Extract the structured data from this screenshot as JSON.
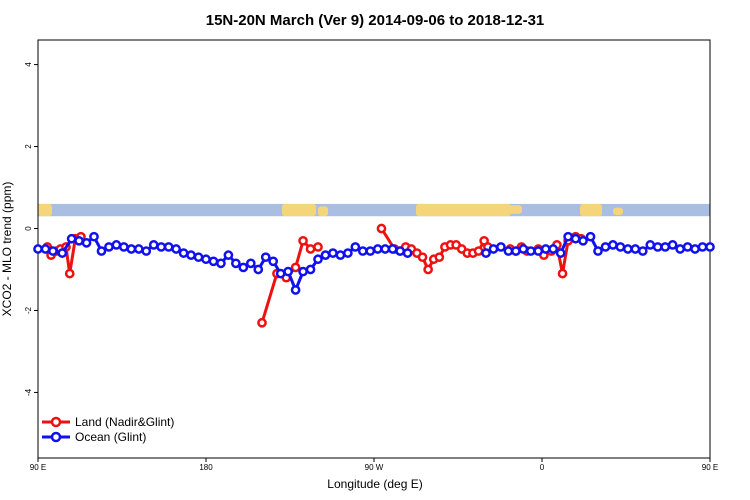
{
  "chart_data": {
    "type": "line",
    "title": "15N-20N March (Ver 9)   2014-09-06 to 2018-12-31",
    "xlabel": "Longitude (deg E)",
    "ylabel": "XCO2 - MLO trend (ppm)",
    "xlim": [
      90,
      450
    ],
    "ylim": [
      -5.6,
      4.6
    ],
    "x_ticks": [
      {
        "value": 90,
        "label": "90 E"
      },
      {
        "value": 180,
        "label": "180"
      },
      {
        "value": 270,
        "label": "90 W"
      },
      {
        "value": 360,
        "label": "0"
      },
      {
        "value": 450,
        "label": "90 E"
      },
      {
        "value": 540,
        "label": "180"
      }
    ],
    "y_ticks": [
      {
        "value": -4,
        "label": "-4"
      },
      {
        "value": -2,
        "label": "-2"
      },
      {
        "value": 0,
        "label": "0"
      },
      {
        "value": 2,
        "label": "2"
      },
      {
        "value": 4,
        "label": "4"
      }
    ],
    "map_strip": {
      "ymin": 0.3,
      "ymax": 0.6,
      "ocean_color": "#a9bee0",
      "land_color": "#f5d57a"
    },
    "grid": false,
    "legend_position": "bottom-left",
    "series": [
      {
        "name": "Land (Nadir&Glint)",
        "color": "#ee1111",
        "points": [
          [
            95,
            -0.45
          ],
          [
            97,
            -0.65
          ],
          [
            100,
            -0.55
          ],
          [
            102,
            -0.5
          ],
          [
            105,
            -0.45
          ],
          [
            107,
            -1.1
          ],
          [
            110,
            -0.25
          ],
          [
            113,
            -0.2
          ],
          [
            210,
            -2.3
          ],
          [
            218,
            -1.1
          ],
          [
            223,
            -1.2
          ],
          [
            228,
            -0.95
          ],
          [
            232,
            -0.3
          ],
          [
            236,
            -0.5
          ],
          [
            240,
            -0.45
          ],
          [
            274,
            0.0
          ],
          [
            281,
            -0.5
          ],
          [
            284,
            -0.55
          ],
          [
            287,
            -0.45
          ],
          [
            290,
            -0.5
          ],
          [
            293,
            -0.6
          ],
          [
            296,
            -0.7
          ],
          [
            299,
            -1.0
          ],
          [
            302,
            -0.75
          ],
          [
            305,
            -0.7
          ],
          [
            308,
            -0.45
          ],
          [
            311,
            -0.4
          ],
          [
            314,
            -0.4
          ],
          [
            317,
            -0.5
          ],
          [
            320,
            -0.6
          ],
          [
            323,
            -0.6
          ],
          [
            326,
            -0.55
          ],
          [
            329,
            -0.3
          ],
          [
            331,
            -0.45
          ],
          [
            343,
            -0.5
          ],
          [
            346,
            -0.55
          ],
          [
            349,
            -0.45
          ],
          [
            352,
            -0.55
          ],
          [
            358,
            -0.5
          ],
          [
            361,
            -0.65
          ],
          [
            365,
            -0.55
          ],
          [
            368,
            -0.4
          ],
          [
            371,
            -1.1
          ],
          [
            374,
            -0.3
          ],
          [
            378,
            -0.2
          ],
          [
            381,
            -0.25
          ]
        ]
      },
      {
        "name": "Ocean (Glint)",
        "color": "#1111ee",
        "points": [
          [
            90,
            -0.5
          ],
          [
            94,
            -0.5
          ],
          [
            98,
            -0.55
          ],
          [
            103,
            -0.6
          ],
          [
            108,
            -0.25
          ],
          [
            112,
            -0.3
          ],
          [
            116,
            -0.35
          ],
          [
            120,
            -0.2
          ],
          [
            124,
            -0.55
          ],
          [
            128,
            -0.45
          ],
          [
            132,
            -0.4
          ],
          [
            136,
            -0.45
          ],
          [
            140,
            -0.5
          ],
          [
            144,
            -0.5
          ],
          [
            148,
            -0.55
          ],
          [
            152,
            -0.4
          ],
          [
            156,
            -0.45
          ],
          [
            160,
            -0.45
          ],
          [
            164,
            -0.5
          ],
          [
            168,
            -0.6
          ],
          [
            172,
            -0.65
          ],
          [
            176,
            -0.7
          ],
          [
            180,
            -0.75
          ],
          [
            184,
            -0.8
          ],
          [
            188,
            -0.85
          ],
          [
            192,
            -0.65
          ],
          [
            196,
            -0.85
          ],
          [
            200,
            -0.95
          ],
          [
            204,
            -0.85
          ],
          [
            208,
            -1.0
          ],
          [
            212,
            -0.7
          ],
          [
            216,
            -0.8
          ],
          [
            220,
            -1.1
          ],
          [
            224,
            -1.05
          ],
          [
            228,
            -1.5
          ],
          [
            232,
            -1.05
          ],
          [
            236,
            -1.0
          ],
          [
            240,
            -0.75
          ],
          [
            244,
            -0.65
          ],
          [
            248,
            -0.6
          ],
          [
            252,
            -0.65
          ],
          [
            256,
            -0.6
          ],
          [
            260,
            -0.45
          ],
          [
            264,
            -0.55
          ],
          [
            268,
            -0.55
          ],
          [
            272,
            -0.5
          ],
          [
            276,
            -0.5
          ],
          [
            280,
            -0.5
          ],
          [
            284,
            -0.55
          ],
          [
            288,
            -0.6
          ],
          [
            330,
            -0.6
          ],
          [
            334,
            -0.5
          ],
          [
            338,
            -0.45
          ],
          [
            342,
            -0.55
          ],
          [
            346,
            -0.55
          ],
          [
            350,
            -0.5
          ],
          [
            354,
            -0.55
          ],
          [
            358,
            -0.55
          ],
          [
            362,
            -0.5
          ],
          [
            366,
            -0.5
          ],
          [
            370,
            -0.6
          ],
          [
            374,
            -0.2
          ],
          [
            378,
            -0.25
          ],
          [
            382,
            -0.3
          ],
          [
            386,
            -0.2
          ],
          [
            390,
            -0.55
          ],
          [
            394,
            -0.45
          ],
          [
            398,
            -0.4
          ],
          [
            402,
            -0.45
          ],
          [
            406,
            -0.5
          ],
          [
            410,
            -0.5
          ],
          [
            414,
            -0.55
          ],
          [
            418,
            -0.4
          ],
          [
            422,
            -0.45
          ],
          [
            426,
            -0.45
          ],
          [
            430,
            -0.4
          ],
          [
            434,
            -0.5
          ],
          [
            438,
            -0.45
          ],
          [
            442,
            -0.5
          ],
          [
            446,
            -0.45
          ],
          [
            450,
            -0.45
          ]
        ]
      }
    ]
  }
}
